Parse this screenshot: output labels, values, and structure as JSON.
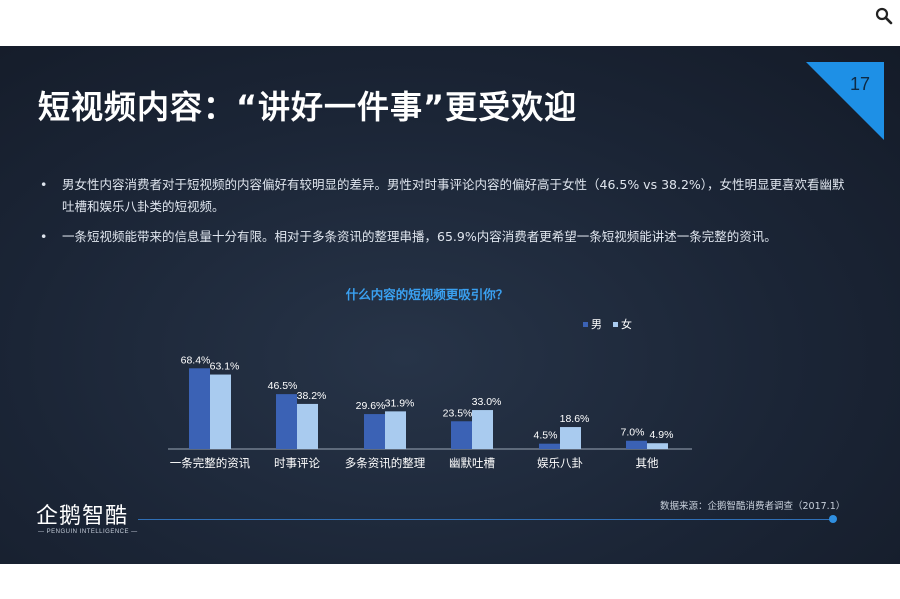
{
  "slide": {
    "page_number": "17",
    "title": "短视频内容：“讲好一件事”更受欢迎",
    "bullets": [
      "男女性内容消费者对于短视频的内容偏好有较明显的差异。男性对时事评论内容的偏好高于女性（46.5% vs 38.2%），女性明显更喜欢看幽默吐槽和娱乐八卦类的短视频。",
      "一条短视频能带来的信息量十分有限。相对于多条资讯的整理串播，65.9%内容消费者更希望一条短视频能讲述一条完整的资讯。"
    ],
    "bullet_symbol": "•",
    "source": "数据来源：企鹅智酷消费者调查（2017.1）",
    "logo": {
      "name": "企鹅智酷",
      "subtitle": "— PENGUIN INTELLIGENCE —"
    },
    "colors": {
      "accent": "#1e90e6",
      "male": "#3b62b5",
      "female": "#a9cbef",
      "title_chart": "#3aa0f0"
    },
    "icons": [
      "search-icon"
    ]
  },
  "chart_data": {
    "type": "bar",
    "title": "什么内容的短视频更吸引你？",
    "categories": [
      "一条完整的资讯",
      "时事评论",
      "多条资讯的整理",
      "幽默吐槽",
      "娱乐八卦",
      "其他"
    ],
    "series": [
      {
        "name": "男",
        "values": [
          68.4,
          46.5,
          29.6,
          23.5,
          4.5,
          7.0
        ],
        "labels": [
          "68.4%",
          "46.5%",
          "29.6%",
          "23.5%",
          "4.5%",
          "7.0%"
        ],
        "color": "#3b62b5"
      },
      {
        "name": "女",
        "values": [
          63.1,
          38.2,
          31.9,
          33.0,
          18.6,
          4.9
        ],
        "labels": [
          "63.1%",
          "38.2%",
          "31.9%",
          "33.0%",
          "18.6%",
          "4.9%"
        ],
        "color": "#a9cbef"
      }
    ],
    "unit": "%",
    "ylim": [
      0,
      70
    ],
    "legend": "top-right",
    "grid": false
  }
}
